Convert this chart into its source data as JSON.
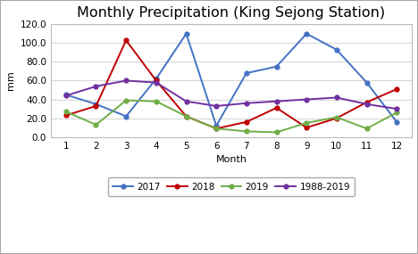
{
  "title": "Monthly Precipitation (King Sejong Station)",
  "xlabel": "Month",
  "ylabel": "mm",
  "months": [
    1,
    2,
    3,
    4,
    5,
    6,
    7,
    8,
    9,
    10,
    11,
    12
  ],
  "series_2017": [
    45,
    35,
    22,
    62,
    110,
    12,
    68,
    75,
    110,
    93,
    58,
    16
  ],
  "series_2018": [
    23,
    33,
    103,
    60,
    22,
    9,
    16,
    31,
    10,
    20,
    37,
    51
  ],
  "series_2019": [
    27,
    13,
    39,
    38,
    22,
    9,
    6,
    5,
    15,
    21,
    9,
    26
  ],
  "series_clim": [
    44,
    54,
    60,
    58,
    38,
    33,
    36,
    38,
    40,
    42,
    35,
    30
  ],
  "color_2017": "#4472C4",
  "color_2018": "#C00000",
  "color_2019": "#70AD47",
  "color_clim": "#7030A0",
  "ylim": [
    0.0,
    120.0
  ],
  "yticks": [
    0.0,
    20.0,
    40.0,
    60.0,
    80.0,
    100.0,
    120.0
  ],
  "xticks": [
    1,
    2,
    3,
    4,
    5,
    6,
    7,
    8,
    9,
    10,
    11,
    12
  ],
  "legend_labels": [
    "2017",
    "2018",
    "2019",
    "1988-2019"
  ],
  "title_fontsize": 11.5,
  "label_fontsize": 8,
  "tick_fontsize": 7.5,
  "legend_fontsize": 7.5,
  "marker": "o",
  "markersize": 3.5,
  "linewidth": 1.4,
  "background_color": "#ffffff",
  "grid_color": "#d9d9d9",
  "outer_border_color": "#a6a6a6"
}
